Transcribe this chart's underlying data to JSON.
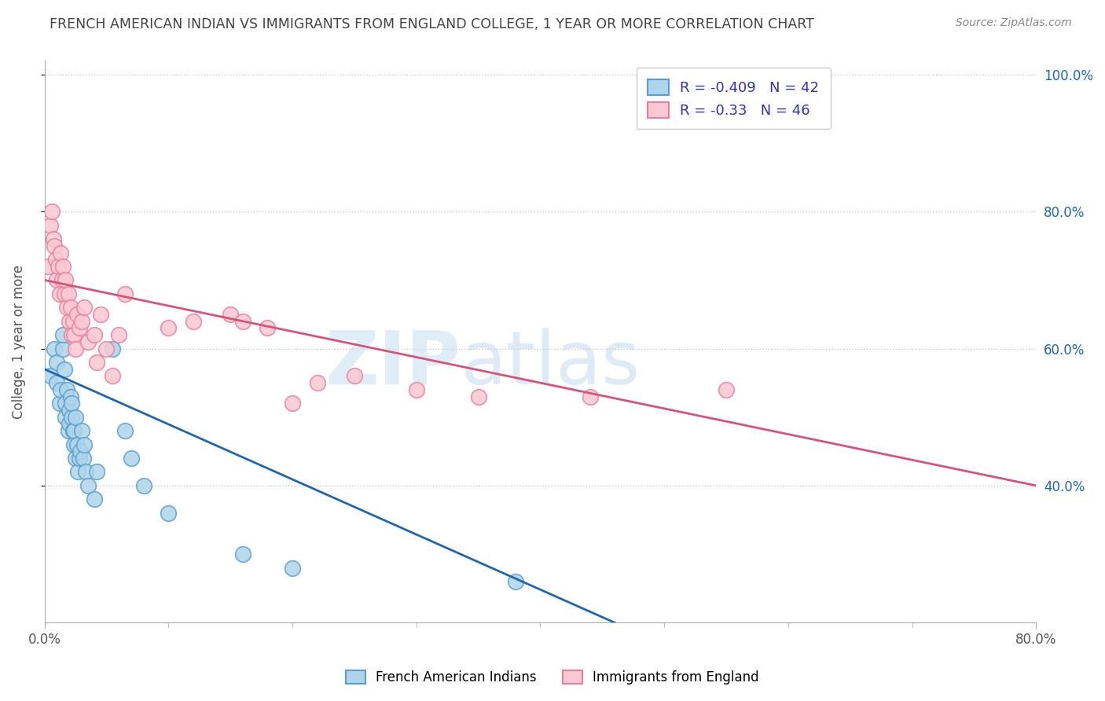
{
  "title": "FRENCH AMERICAN INDIAN VS IMMIGRANTS FROM ENGLAND COLLEGE, 1 YEAR OR MORE CORRELATION CHART",
  "source_text": "Source: ZipAtlas.com",
  "ylabel": "College, 1 year or more",
  "xmin": 0.0,
  "xmax": 0.8,
  "ymin": 0.2,
  "ymax": 1.02,
  "yticks": [
    0.4,
    0.6,
    0.8,
    1.0
  ],
  "ytick_labels": [
    "40.0%",
    "60.0%",
    "80.0%",
    "100.0%"
  ],
  "blue_R": -0.409,
  "blue_N": 42,
  "pink_R": -0.33,
  "pink_N": 46,
  "blue_label": "French American Indians",
  "pink_label": "Immigrants from England",
  "blue_color": "#aed4eb",
  "blue_edge_color": "#5b9ec9",
  "blue_line_color": "#2166ac",
  "pink_color": "#f9c8d4",
  "pink_edge_color": "#e8809a",
  "pink_line_color": "#d4547a",
  "watermark_zip": "ZIP",
  "watermark_atlas": "atlas",
  "background_color": "#ffffff",
  "grid_color": "#c8c8c8",
  "title_color": "#444444",
  "legend_text_color": "#3333aa",
  "blue_scatter_x": [
    0.005,
    0.008,
    0.01,
    0.01,
    0.012,
    0.013,
    0.015,
    0.015,
    0.016,
    0.017,
    0.017,
    0.018,
    0.019,
    0.02,
    0.02,
    0.021,
    0.022,
    0.022,
    0.023,
    0.024,
    0.024,
    0.025,
    0.025,
    0.026,
    0.027,
    0.028,
    0.029,
    0.03,
    0.031,
    0.032,
    0.033,
    0.035,
    0.04,
    0.042,
    0.055,
    0.065,
    0.07,
    0.08,
    0.1,
    0.16,
    0.2,
    0.38
  ],
  "blue_scatter_y": [
    0.56,
    0.6,
    0.55,
    0.58,
    0.52,
    0.54,
    0.6,
    0.62,
    0.57,
    0.5,
    0.52,
    0.54,
    0.48,
    0.49,
    0.51,
    0.53,
    0.5,
    0.52,
    0.48,
    0.46,
    0.48,
    0.5,
    0.44,
    0.46,
    0.42,
    0.44,
    0.45,
    0.48,
    0.44,
    0.46,
    0.42,
    0.4,
    0.38,
    0.42,
    0.6,
    0.48,
    0.44,
    0.4,
    0.36,
    0.3,
    0.28,
    0.26
  ],
  "pink_scatter_x": [
    0.003,
    0.005,
    0.006,
    0.007,
    0.008,
    0.009,
    0.01,
    0.011,
    0.012,
    0.013,
    0.014,
    0.015,
    0.016,
    0.017,
    0.018,
    0.019,
    0.02,
    0.021,
    0.022,
    0.023,
    0.024,
    0.025,
    0.026,
    0.028,
    0.03,
    0.032,
    0.035,
    0.04,
    0.042,
    0.045,
    0.05,
    0.055,
    0.06,
    0.065,
    0.1,
    0.12,
    0.15,
    0.16,
    0.18,
    0.2,
    0.22,
    0.25,
    0.3,
    0.35,
    0.44,
    0.55
  ],
  "pink_scatter_y": [
    0.72,
    0.78,
    0.8,
    0.76,
    0.75,
    0.73,
    0.7,
    0.72,
    0.68,
    0.74,
    0.7,
    0.72,
    0.68,
    0.7,
    0.66,
    0.68,
    0.64,
    0.66,
    0.62,
    0.64,
    0.62,
    0.6,
    0.65,
    0.63,
    0.64,
    0.66,
    0.61,
    0.62,
    0.58,
    0.65,
    0.6,
    0.56,
    0.62,
    0.68,
    0.63,
    0.64,
    0.65,
    0.64,
    0.63,
    0.52,
    0.55,
    0.56,
    0.54,
    0.53,
    0.53,
    0.54
  ],
  "blue_line_x": [
    0.0,
    0.46
  ],
  "blue_line_y": [
    0.57,
    0.2
  ],
  "pink_line_x": [
    0.0,
    0.8
  ],
  "pink_line_y": [
    0.7,
    0.4
  ]
}
